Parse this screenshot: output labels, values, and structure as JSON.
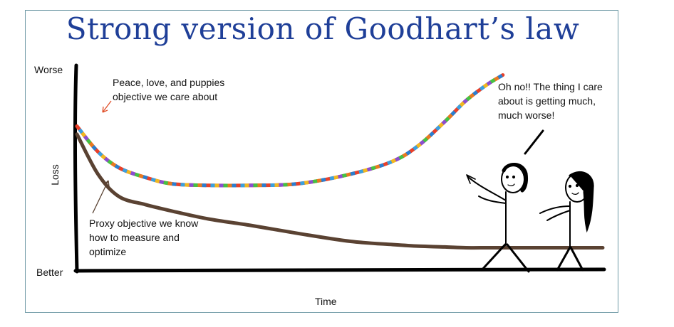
{
  "title": "Strong version of Goodhart’s law",
  "chart_data": {
    "type": "line",
    "ylabel": "Loss",
    "xlabel": "Time",
    "y_tick_labels": {
      "top": "Worse",
      "bottom": "Better"
    },
    "x": [
      0,
      0.04,
      0.08,
      0.13,
      0.18,
      0.25,
      0.33,
      0.42,
      0.52,
      0.6,
      0.65,
      0.7,
      0.74,
      0.78,
      0.81,
      1.0
    ],
    "series": [
      {
        "name": "Peace, love, and puppies objective we care about",
        "color": "multicolor",
        "values": [
          0.82,
          0.66,
          0.56,
          0.5,
          0.46,
          0.45,
          0.45,
          0.46,
          0.52,
          0.6,
          0.7,
          0.85,
          0.98,
          1.08,
          1.14,
          null
        ]
      },
      {
        "name": "Proxy objective we know how to measure and optimize",
        "color": "#5a4232",
        "values": [
          0.77,
          0.52,
          0.38,
          0.33,
          0.29,
          0.24,
          0.2,
          0.15,
          0.1,
          0.08,
          0.07,
          0.065,
          0.06,
          0.06,
          0.06,
          0.06
        ]
      }
    ],
    "annotations": {
      "true_objective": "Peace, love, and puppies objective we care about",
      "proxy_objective": "Proxy objective we know how to measure and optimize",
      "speech": "Oh no!! The thing I care about is getting much, much worse!"
    },
    "rainbow_colors": [
      "#e8402a",
      "#3aa0e0",
      "#f0b820",
      "#8a4fd0",
      "#44c244",
      "#e87a20",
      "#2a7fd0"
    ]
  }
}
